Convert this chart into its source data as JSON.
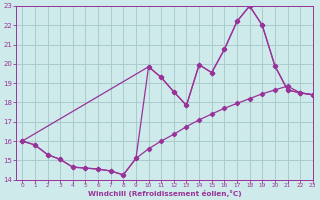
{
  "xlabel": "Windchill (Refroidissement éolien,°C)",
  "bg_color": "#ceeaea",
  "grid_color": "#aacccc",
  "line_color": "#993399",
  "xlim": [
    -0.5,
    23
  ],
  "ylim": [
    14,
    23
  ],
  "xticks": [
    0,
    1,
    2,
    3,
    4,
    5,
    6,
    7,
    8,
    9,
    10,
    11,
    12,
    13,
    14,
    15,
    16,
    17,
    18,
    19,
    20,
    21,
    22,
    23
  ],
  "yticks": [
    14,
    15,
    16,
    17,
    18,
    19,
    20,
    21,
    22,
    23
  ],
  "line_upper_x": [
    0,
    1,
    2,
    3,
    4,
    5,
    6,
    7,
    8,
    9,
    10,
    11,
    12,
    13,
    14,
    15,
    16,
    17,
    18,
    19,
    20,
    21,
    22,
    23
  ],
  "line_upper_y": [
    16.0,
    15.8,
    15.3,
    15.05,
    14.65,
    14.6,
    14.55,
    14.45,
    14.25,
    15.1,
    19.85,
    19.3,
    18.55,
    17.85,
    19.95,
    19.55,
    20.75,
    22.2,
    23.0,
    22.0,
    19.9,
    18.65,
    18.5,
    18.4
  ],
  "line_lower_x": [
    0,
    1,
    2,
    3,
    4,
    5,
    6,
    7,
    8,
    9,
    10,
    11,
    12,
    13,
    14,
    15,
    16,
    17,
    18,
    19,
    20,
    21,
    22,
    23
  ],
  "line_lower_y": [
    16.0,
    15.8,
    15.3,
    15.05,
    14.65,
    14.6,
    14.55,
    14.45,
    14.25,
    15.1,
    15.6,
    16.0,
    16.35,
    16.75,
    17.1,
    17.4,
    17.7,
    17.95,
    18.2,
    18.45,
    18.65,
    18.85,
    18.5,
    18.4
  ],
  "line_smooth_x": [
    0,
    10,
    11,
    12,
    13,
    14,
    15,
    16,
    17,
    18,
    19,
    20,
    21,
    22,
    23
  ],
  "line_smooth_y": [
    16.0,
    19.85,
    19.3,
    18.55,
    17.85,
    19.95,
    19.55,
    20.75,
    22.2,
    23.0,
    22.0,
    19.9,
    18.65,
    18.5,
    18.4
  ],
  "markersize": 2.2
}
